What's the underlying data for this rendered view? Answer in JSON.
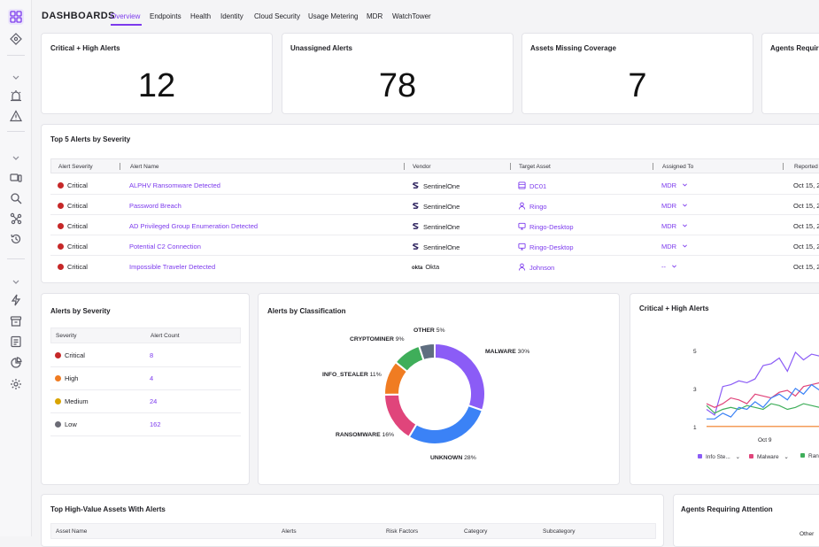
{
  "header": {
    "title": "DASHBOARDS",
    "tabs": [
      "Overview",
      "Endpoints",
      "Health",
      "Identity",
      "Cloud Security",
      "Usage Metering",
      "MDR",
      "WatchTower"
    ]
  },
  "kpis": [
    {
      "title": "Critical + High Alerts",
      "value": "12"
    },
    {
      "title": "Unassigned Alerts",
      "value": "78"
    },
    {
      "title": "Assets Missing Coverage",
      "value": "7"
    },
    {
      "title": "Agents Requiring",
      "value": ""
    }
  ],
  "top_alerts": {
    "title": "Top 5 Alerts by Severity",
    "columns": [
      "Alert Severity",
      "Alert Name",
      "Vendor",
      "Target Asset",
      "Assigned To",
      "Reported"
    ],
    "rows": [
      {
        "severity": "Critical",
        "name": "ALPHV Ransomware Detected",
        "vendor": "SentinelOne",
        "asset": "DC01",
        "asset_icon": "server-icon",
        "assigned": "MDR",
        "reported": "Oct 15, 2"
      },
      {
        "severity": "Critical",
        "name": "Password Breach",
        "vendor": "SentinelOne",
        "asset": "Ringo",
        "asset_icon": "user-icon",
        "assigned": "MDR",
        "reported": "Oct 15, 2"
      },
      {
        "severity": "Critical",
        "name": "AD Privileged Group Enumeration Detected",
        "vendor": "SentinelOne",
        "asset": "Ringo-Desktop",
        "asset_icon": "desktop-icon",
        "assigned": "MDR",
        "reported": "Oct 15, 2"
      },
      {
        "severity": "Critical",
        "name": "Potential C2 Connection",
        "vendor": "SentinelOne",
        "asset": "Ringo-Desktop",
        "asset_icon": "desktop-icon",
        "assigned": "MDR",
        "reported": "Oct 15, 2"
      },
      {
        "severity": "Critical",
        "name": "Impossible Traveler Detected",
        "vendor": "Okta",
        "vendor_mark": "okta",
        "asset": "Johnson",
        "asset_icon": "user-icon",
        "assigned": "--",
        "reported": "Oct 15, 2"
      }
    ]
  },
  "alerts_by_severity": {
    "title": "Alerts by Severity",
    "columns": [
      "Severity",
      "Alert Count"
    ],
    "rows": [
      {
        "label": "Critical",
        "count": "8",
        "color": "#c62828"
      },
      {
        "label": "High",
        "count": "4",
        "color": "#f07c22"
      },
      {
        "label": "Medium",
        "count": "24",
        "color": "#d9a400"
      },
      {
        "label": "Low",
        "count": "162",
        "color": "#6b6b75"
      }
    ]
  },
  "chart_data": [
    {
      "type": "pie",
      "title": "Alerts by Classification",
      "categories": [
        "MALWARE",
        "UNKNOWN",
        "RANSOMWARE",
        "INFO_STEALER",
        "CRYPTOMINER",
        "OTHER"
      ],
      "values": [
        30,
        28,
        16,
        11,
        9,
        5
      ],
      "labels": [
        "30%",
        "28%",
        "16%",
        "11%",
        "9%",
        "5%"
      ],
      "colors": [
        "#8b5cf6",
        "#3b82f6",
        "#e0457b",
        "#f07c22",
        "#3fae5a",
        "#5f6e80"
      ]
    },
    {
      "type": "line",
      "title": "Critical + High Alerts",
      "x_tick": "Oct 9",
      "y_ticks": [
        "5",
        "3",
        "1"
      ],
      "ylim": [
        1,
        5
      ],
      "legend": [
        "Info Ste...",
        "Malware",
        "Ran"
      ],
      "series": [
        {
          "name": "Info Ste...",
          "color": "#8b5cf6",
          "values": [
            2,
            1.7,
            3.2,
            3.3,
            3.5,
            3.4,
            3.6,
            4.3,
            4.4,
            4.7,
            4,
            5,
            4.6,
            4.9,
            4.8,
            4.3,
            4.7
          ]
        },
        {
          "name": "Malware",
          "color": "#e0457b",
          "values": [
            2.3,
            2.1,
            2.3,
            2.6,
            2.5,
            2.3,
            2.8,
            2.7,
            2.6,
            2.9,
            3,
            2.7,
            3.2,
            3.3,
            3.4,
            3.1,
            3.6
          ]
        },
        {
          "name": "Ran",
          "color": "#3fae5a",
          "values": [
            2.2,
            1.8,
            2,
            2.1,
            2,
            2.2,
            2.1,
            2,
            2.3,
            2.2,
            2,
            2.1,
            2.3,
            2.2,
            2.1,
            2.4,
            2.3
          ]
        },
        {
          "color": "#3b82f6",
          "values": [
            1.5,
            1.5,
            1.8,
            1.6,
            2.1,
            2,
            2.4,
            2.1,
            2.6,
            2.8,
            2.5,
            3.1,
            2.8,
            3.3,
            3,
            3.4,
            3.2
          ]
        },
        {
          "color": "#f07c22",
          "values": [
            1.1,
            1.1,
            1.1,
            1.1,
            1.1,
            1.1,
            1.1,
            1.1,
            1.1,
            1.1,
            1.1,
            1.1,
            1.1,
            1.1,
            1.1,
            1.1,
            1.1
          ]
        }
      ]
    }
  ],
  "hv_assets": {
    "title": "Top High-Value Assets With Alerts",
    "columns": [
      "Asset Name",
      "Alerts",
      "Risk Factors",
      "Category",
      "Subcategory"
    ]
  },
  "agents_attention": {
    "title": "Agents Requiring Attention",
    "peek": "Other"
  }
}
